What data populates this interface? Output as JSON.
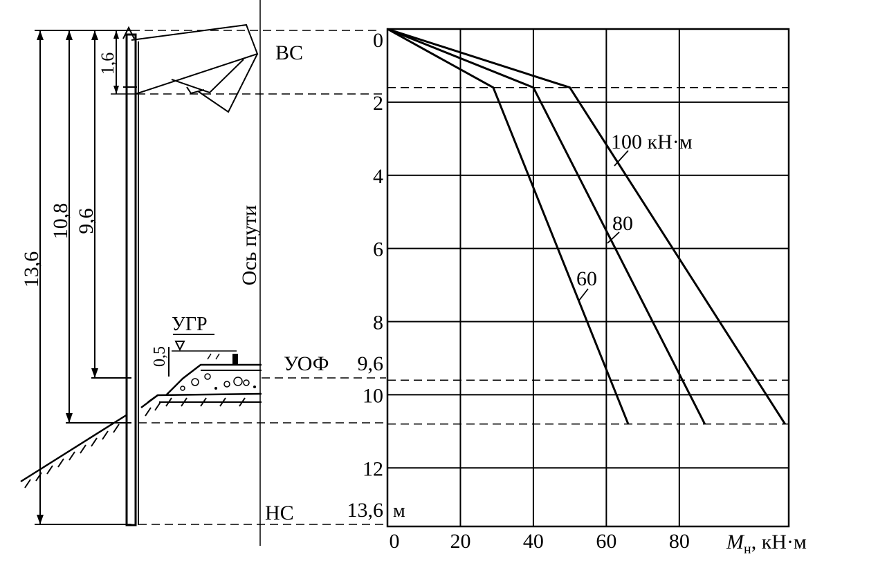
{
  "left": {
    "dims": {
      "d136": "13,6",
      "d108": "10,8",
      "d96": "9,6",
      "d16": "1,6",
      "d05": "0,5"
    },
    "axis_label": "Ось пути",
    "ugr": "УГР",
    "vs": "ВС",
    "uof": "УОФ",
    "ns": "НС"
  },
  "chart_data": {
    "type": "line",
    "title": "",
    "xlabel": "Mн, кН·м",
    "xlabel_main": "M",
    "xlabel_sub": "н",
    "xlabel_rest": ", кН·м",
    "ylabel": "м",
    "xlim": [
      0,
      110
    ],
    "ylim": [
      0,
      13.6
    ],
    "y_inverted": true,
    "x_ticks": [
      0,
      20,
      40,
      60,
      80
    ],
    "y_ticks": [
      0,
      2,
      4,
      6,
      8,
      10,
      12
    ],
    "y_tick_labels": [
      "0",
      "2",
      "4",
      "6",
      "8",
      "10",
      "12"
    ],
    "y_extra_labels": [
      {
        "y": 9.6,
        "label": "9,6"
      },
      {
        "y": 13.6,
        "label": "13,6"
      }
    ],
    "grid": true,
    "series": [
      {
        "name": "60",
        "label": "60",
        "points": [
          [
            0,
            0
          ],
          [
            29,
            1.6
          ],
          [
            66,
            10.8
          ]
        ]
      },
      {
        "name": "80",
        "label": "80",
        "points": [
          [
            0,
            0
          ],
          [
            40,
            1.6
          ],
          [
            87,
            10.8
          ]
        ]
      },
      {
        "name": "100 кН·м",
        "label": "100 кН·м",
        "points": [
          [
            0,
            0
          ],
          [
            50,
            1.6
          ],
          [
            109,
            10.8
          ]
        ]
      }
    ]
  }
}
